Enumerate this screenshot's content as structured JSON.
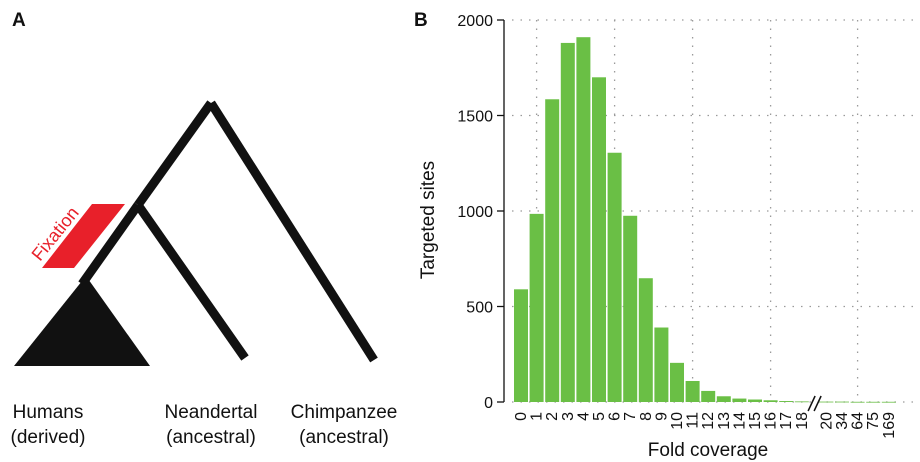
{
  "panel_a": {
    "letter": "A",
    "fixation_label": "Fixation",
    "tips": [
      {
        "name": "Humans",
        "state": "(derived)"
      },
      {
        "name": "Neandertal",
        "state": "(ancestral)"
      },
      {
        "name": "Chimpanzee",
        "state": "(ancestral)"
      }
    ],
    "colors": {
      "branch": "#111111",
      "fixation": "#e8202a"
    }
  },
  "panel_b": {
    "letter": "B"
  },
  "chart_data": {
    "type": "bar",
    "xlabel": "Fold coverage",
    "ylabel": "Targeted sites",
    "ylim": [
      0,
      2000
    ],
    "yticks": [
      0,
      500,
      1000,
      1500,
      2000
    ],
    "grid": true,
    "axis_break_after": "18",
    "bar_color": "#6abf45",
    "categories": [
      "0",
      "1",
      "2",
      "3",
      "4",
      "5",
      "6",
      "7",
      "8",
      "9",
      "10",
      "11",
      "12",
      "13",
      "14",
      "15",
      "16",
      "17",
      "18",
      "20",
      "34",
      "64",
      "75",
      "169"
    ],
    "values": [
      590,
      985,
      1585,
      1880,
      1910,
      1700,
      1305,
      975,
      648,
      390,
      205,
      110,
      58,
      30,
      18,
      13,
      9,
      5,
      3,
      2,
      2,
      1,
      1,
      1
    ]
  }
}
